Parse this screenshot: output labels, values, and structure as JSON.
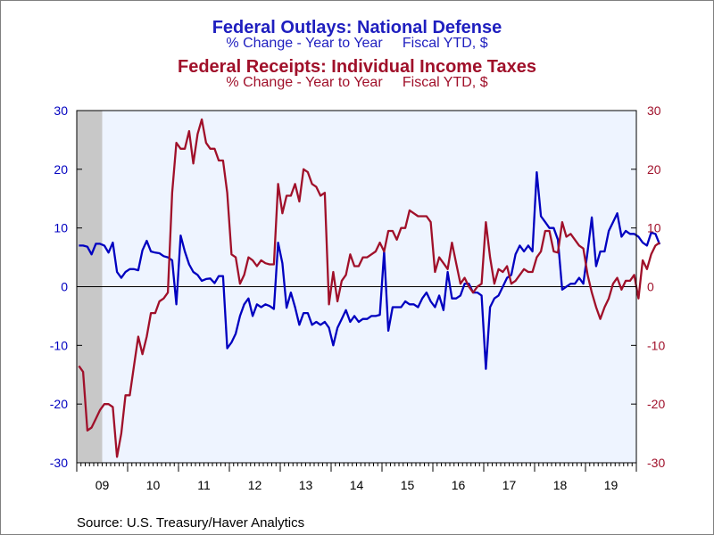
{
  "colors": {
    "plot_background": "#eef4ff",
    "recession_shade": "#c8c8c8",
    "defense_line": "#0000c0",
    "receipts_line": "#a0102a",
    "left_axis_text": "#0000c0",
    "right_axis_text": "#a0102a"
  },
  "titles": {
    "line1": "Federal Outlays: National Defense",
    "line1_sub": "% Change - Year to Year     Fiscal YTD, $",
    "line2": "Federal Receipts: Individual Income Taxes",
    "line2_sub": "% Change - Year to Year     Fiscal YTD, $"
  },
  "source": "Source:  U.S. Treasury/Haver Analytics",
  "chart_data": {
    "type": "line",
    "frequency": "monthly",
    "title": "Federal Outlays: National Defense",
    "subtitle": "% Change - Year to Year     Fiscal YTD, $",
    "x_range": [
      "2009-01",
      "2019-12"
    ],
    "x_tick_labels": [
      "09",
      "10",
      "11",
      "12",
      "13",
      "14",
      "15",
      "16",
      "17",
      "18",
      "19"
    ],
    "y_left": {
      "range": [
        -30,
        30
      ],
      "ticks": [
        30,
        20,
        10,
        0,
        -10,
        -20,
        -30
      ]
    },
    "y_right": {
      "range": [
        -30,
        30
      ],
      "ticks": [
        30,
        20,
        10,
        0,
        -10,
        -20,
        -30
      ]
    },
    "zero_line": true,
    "recession_shading": [
      [
        "2009-01",
        "2009-06"
      ]
    ],
    "series": [
      {
        "name": "Federal Outlays: National Defense",
        "axis": "left",
        "values": [
          7.0,
          7.0,
          6.8,
          5.5,
          7.3,
          7.3,
          7.0,
          5.8,
          7.5,
          2.5,
          1.5,
          2.5,
          3.0,
          3.0,
          2.8,
          6.2,
          7.8,
          6.0,
          5.8,
          5.7,
          5.2,
          5.0,
          4.5,
          -3.0,
          8.7,
          6.0,
          3.8,
          2.5,
          2.0,
          1.0,
          1.3,
          1.4,
          0.6,
          1.8,
          1.8,
          -10.5,
          -9.5,
          -8.0,
          -5.0,
          -3.0,
          -2.0,
          -5.0,
          -3.0,
          -3.5,
          -3.0,
          -3.3,
          -3.8,
          7.5,
          4.0,
          -3.6,
          -1.0,
          -3.5,
          -6.5,
          -4.5,
          -4.5,
          -6.5,
          -6.0,
          -6.5,
          -6.0,
          -7.0,
          -10.0,
          -7.0,
          -5.5,
          -4.0,
          -6.0,
          -5.0,
          -6.0,
          -5.5,
          -5.5,
          -5.0,
          -5.0,
          -4.8,
          6.0,
          -7.5,
          -3.5,
          -3.5,
          -3.5,
          -2.5,
          -3.0,
          -3.0,
          -3.5,
          -2.0,
          -1.0,
          -2.5,
          -3.5,
          -1.5,
          -4.0,
          2.5,
          -2.0,
          -2.0,
          -1.5,
          0.5,
          0.5,
          -1.0,
          -1.0,
          -1.5,
          -14.0,
          -3.5,
          -2.0,
          -1.5,
          0.0,
          1.5,
          2.0,
          5.5,
          7.0,
          6.0,
          7.0,
          6.0,
          19.5,
          12.0,
          11.0,
          10.0,
          10.0,
          8.0,
          -0.5,
          0.0,
          0.5,
          0.5,
          1.5,
          0.5,
          6.0,
          11.8,
          3.5,
          6.0,
          6.0,
          9.5,
          11.0,
          12.5,
          8.5,
          9.5,
          9.0,
          9.0,
          8.5,
          7.5,
          7.0,
          9.2,
          9.0,
          7.2
        ]
      },
      {
        "name": "Federal Receipts: Individual Income Taxes",
        "axis": "right",
        "values": [
          -13.5,
          -14.5,
          -24.5,
          -24.0,
          -22.5,
          -21.0,
          -20.0,
          -20.0,
          -20.5,
          -29.0,
          -25.0,
          -18.5,
          -18.5,
          -13.5,
          -8.5,
          -11.5,
          -8.5,
          -4.5,
          -4.5,
          -2.5,
          -2.0,
          -1.0,
          16.0,
          24.5,
          23.5,
          23.5,
          26.5,
          21.0,
          26.0,
          28.5,
          24.5,
          23.5,
          23.5,
          21.5,
          21.5,
          16.0,
          5.5,
          5.0,
          0.5,
          2.0,
          5.0,
          4.5,
          3.5,
          4.5,
          4.0,
          3.8,
          3.8,
          17.5,
          12.5,
          15.5,
          15.5,
          17.5,
          14.5,
          20.0,
          19.5,
          17.5,
          17.0,
          15.5,
          16.0,
          -3.0,
          2.5,
          -2.5,
          1.0,
          2.0,
          5.5,
          3.5,
          3.5,
          5.0,
          5.0,
          5.5,
          6.0,
          7.5,
          6.0,
          9.5,
          9.5,
          8.0,
          10.0,
          10.0,
          13.0,
          12.5,
          12.0,
          12.0,
          12.0,
          11.0,
          2.5,
          5.0,
          4.0,
          3.0,
          7.5,
          4.0,
          0.5,
          1.5,
          0.0,
          -1.0,
          0.0,
          0.5,
          11.0,
          5.0,
          0.5,
          3.0,
          2.5,
          3.5,
          0.5,
          1.0,
          2.0,
          3.0,
          2.5,
          2.5,
          5.0,
          6.0,
          9.5,
          9.5,
          6.0,
          5.8,
          11.0,
          8.5,
          9.0,
          8.0,
          7.0,
          6.5,
          2.0,
          -1.0,
          -3.5,
          -5.5,
          -3.5,
          -2.0,
          0.5,
          1.5,
          -0.5,
          1.0,
          1.0,
          2.0,
          -2.0,
          4.5,
          3.0,
          5.5,
          7.0,
          7.5
        ]
      }
    ]
  }
}
